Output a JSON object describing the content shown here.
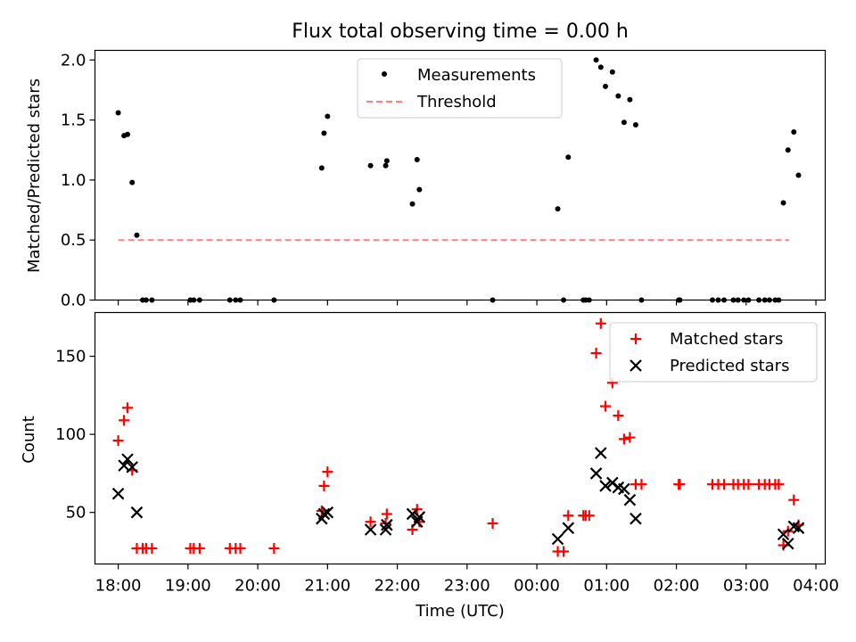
{
  "chart_data": [
    {
      "type": "scatter",
      "title": "Flux total observing time = 0.00 h",
      "xlabel": "",
      "ylabel": "Matched/Predicted stars",
      "ylim": [
        0,
        2.08
      ],
      "xlim": [
        "17:40",
        "04:08"
      ],
      "yticks": [
        0.0,
        0.5,
        1.0,
        1.5,
        2.0
      ],
      "ytick_labels": [
        "0.0",
        "0.5",
        "1.0",
        "1.5",
        "2.0"
      ],
      "grid": false,
      "legend_position": "top-center",
      "legend": [
        "Measurements",
        "Threshold"
      ],
      "threshold": {
        "name": "Threshold",
        "value": 0.5,
        "x_start": "18:00",
        "x_end": "03:37",
        "color": "#ff7f7f",
        "style": "dashed"
      },
      "series": [
        {
          "name": "Measurements",
          "marker": "dot",
          "color": "#000000",
          "points": [
            [
              "18:00",
              1.56
            ],
            [
              "18:05",
              1.37
            ],
            [
              "18:08",
              1.38
            ],
            [
              "18:12",
              0.98
            ],
            [
              "18:16",
              0.54
            ],
            [
              "18:21",
              0.0
            ],
            [
              "18:24",
              0.0
            ],
            [
              "18:29",
              0.0
            ],
            [
              "19:02",
              0.0
            ],
            [
              "19:05",
              0.0
            ],
            [
              "19:10",
              0.0
            ],
            [
              "19:36",
              0.0
            ],
            [
              "19:41",
              0.0
            ],
            [
              "19:45",
              0.0
            ],
            [
              "20:14",
              0.0
            ],
            [
              "20:55",
              1.1
            ],
            [
              "20:57",
              1.39
            ],
            [
              "21:00",
              1.53
            ],
            [
              "21:37",
              1.12
            ],
            [
              "21:50",
              1.12
            ],
            [
              "21:51",
              1.16
            ],
            [
              "22:13",
              0.8
            ],
            [
              "22:17",
              1.17
            ],
            [
              "22:19",
              0.92
            ],
            [
              "23:22",
              0.0
            ],
            [
              "00:18",
              0.76
            ],
            [
              "00:23",
              0.0
            ],
            [
              "00:27",
              1.19
            ],
            [
              "00:40",
              0.0
            ],
            [
              "00:42",
              0.0
            ],
            [
              "00:45",
              0.0
            ],
            [
              "00:51",
              2.0
            ],
            [
              "00:55",
              1.94
            ],
            [
              "00:59",
              1.78
            ],
            [
              "01:05",
              1.9
            ],
            [
              "01:10",
              1.7
            ],
            [
              "01:15",
              1.48
            ],
            [
              "01:20",
              1.67
            ],
            [
              "01:25",
              1.46
            ],
            [
              "01:30",
              0.0
            ],
            [
              "02:02",
              0.0
            ],
            [
              "02:03",
              0.0
            ],
            [
              "02:31",
              0.0
            ],
            [
              "02:36",
              0.0
            ],
            [
              "02:41",
              0.0
            ],
            [
              "02:49",
              0.0
            ],
            [
              "02:53",
              0.0
            ],
            [
              "02:58",
              0.0
            ],
            [
              "03:02",
              0.0
            ],
            [
              "03:11",
              0.0
            ],
            [
              "03:16",
              0.0
            ],
            [
              "03:20",
              0.0
            ],
            [
              "03:25",
              0.0
            ],
            [
              "03:28",
              0.0
            ],
            [
              "03:32",
              0.81
            ],
            [
              "03:36",
              1.25
            ],
            [
              "03:41",
              1.4
            ],
            [
              "03:45",
              1.04
            ]
          ]
        }
      ]
    },
    {
      "type": "scatter",
      "title": "",
      "xlabel": "Time (UTC)",
      "ylabel": "Count",
      "ylim": [
        17,
        178
      ],
      "xlim": [
        "17:40",
        "04:08"
      ],
      "yticks": [
        50,
        100,
        150
      ],
      "ytick_labels": [
        "50",
        "100",
        "150"
      ],
      "xticks": [
        "18:00",
        "19:00",
        "20:00",
        "21:00",
        "22:00",
        "23:00",
        "00:00",
        "01:00",
        "02:00",
        "03:00",
        "04:00"
      ],
      "xtick_labels": [
        "18:00",
        "19:00",
        "20:00",
        "21:00",
        "22:00",
        "23:00",
        "00:00",
        "01:00",
        "02:00",
        "03:00",
        "04:00"
      ],
      "grid": false,
      "legend_position": "top-right",
      "legend": [
        "Matched stars",
        "Predicted stars"
      ],
      "series": [
        {
          "name": "Matched stars",
          "marker": "plus",
          "color": "#ff0000",
          "points": [
            [
              "18:00",
              96
            ],
            [
              "18:05",
              109
            ],
            [
              "18:08",
              117
            ],
            [
              "18:12",
              77
            ],
            [
              "18:16",
              27
            ],
            [
              "18:21",
              27
            ],
            [
              "18:24",
              27
            ],
            [
              "18:29",
              27
            ],
            [
              "19:02",
              27
            ],
            [
              "19:05",
              27
            ],
            [
              "19:10",
              27
            ],
            [
              "19:36",
              27
            ],
            [
              "19:41",
              27
            ],
            [
              "19:45",
              27
            ],
            [
              "20:14",
              27
            ],
            [
              "20:55",
              51
            ],
            [
              "20:57",
              67
            ],
            [
              "21:00",
              76
            ],
            [
              "21:37",
              44
            ],
            [
              "21:50",
              43
            ],
            [
              "21:51",
              49
            ],
            [
              "22:13",
              39
            ],
            [
              "22:17",
              52
            ],
            [
              "22:19",
              44
            ],
            [
              "23:22",
              43
            ],
            [
              "00:18",
              25
            ],
            [
              "00:23",
              25
            ],
            [
              "00:27",
              48
            ],
            [
              "00:40",
              48
            ],
            [
              "00:42",
              48
            ],
            [
              "00:45",
              48
            ],
            [
              "00:51",
              152
            ],
            [
              "00:55",
              171
            ],
            [
              "00:59",
              118
            ],
            [
              "01:05",
              133
            ],
            [
              "01:10",
              112
            ],
            [
              "01:15",
              97
            ],
            [
              "01:20",
              98
            ],
            [
              "01:25",
              68
            ],
            [
              "01:30",
              68
            ],
            [
              "02:02",
              68
            ],
            [
              "02:03",
              68
            ],
            [
              "02:31",
              68
            ],
            [
              "02:36",
              68
            ],
            [
              "02:41",
              68
            ],
            [
              "02:49",
              68
            ],
            [
              "02:53",
              68
            ],
            [
              "02:58",
              68
            ],
            [
              "03:02",
              68
            ],
            [
              "03:11",
              68
            ],
            [
              "03:16",
              68
            ],
            [
              "03:20",
              68
            ],
            [
              "03:25",
              68
            ],
            [
              "03:28",
              68
            ],
            [
              "03:32",
              29
            ],
            [
              "03:36",
              38
            ],
            [
              "03:41",
              58
            ],
            [
              "03:45",
              42
            ]
          ]
        },
        {
          "name": "Predicted stars",
          "marker": "x",
          "color": "#000000",
          "points": [
            [
              "18:00",
              62
            ],
            [
              "18:05",
              80
            ],
            [
              "18:08",
              84
            ],
            [
              "18:12",
              79
            ],
            [
              "18:16",
              50
            ],
            [
              "20:55",
              46
            ],
            [
              "20:57",
              49
            ],
            [
              "21:00",
              50
            ],
            [
              "21:37",
              39
            ],
            [
              "21:50",
              39
            ],
            [
              "21:51",
              42
            ],
            [
              "22:13",
              49
            ],
            [
              "22:17",
              44
            ],
            [
              "22:19",
              47
            ],
            [
              "00:18",
              33
            ],
            [
              "00:27",
              40
            ],
            [
              "00:51",
              75
            ],
            [
              "00:55",
              88
            ],
            [
              "00:59",
              67
            ],
            [
              "01:05",
              69
            ],
            [
              "01:10",
              66
            ],
            [
              "01:15",
              65
            ],
            [
              "01:20",
              58
            ],
            [
              "01:25",
              46
            ],
            [
              "03:32",
              36
            ],
            [
              "03:36",
              30
            ],
            [
              "03:41",
              41
            ],
            [
              "03:45",
              40
            ]
          ]
        }
      ]
    }
  ]
}
